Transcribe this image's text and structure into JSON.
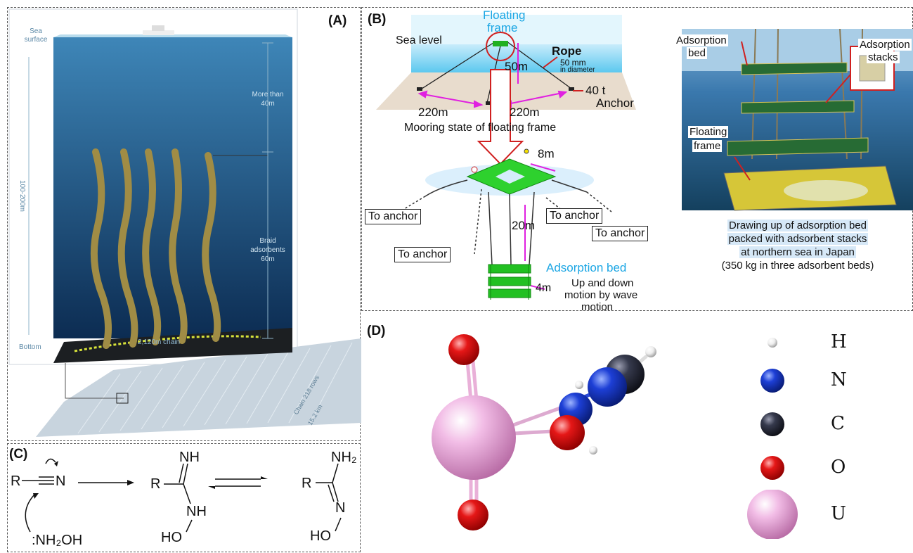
{
  "panels": {
    "a": "(A)",
    "b": "(B)",
    "c": "(C)",
    "d": "(D)"
  },
  "panel_a": {
    "sea_surface": "Sea surface",
    "more_than": "More than",
    "depth_top": "40m",
    "range": "100-200m",
    "braid": "Braid",
    "adsorbents": "adsorbents",
    "braid_len": "60m",
    "bottom": "Bottom",
    "chain": "2,120m chain",
    "chain_rows": "Chain 218 rows",
    "chain_km": "15.2 km"
  },
  "panel_b": {
    "floating": "Floating",
    "frame": "frame",
    "sea_level": "Sea level",
    "rope": "Rope",
    "rope_dia1": "50 mm",
    "rope_dia2": "in diameter",
    "depth_50": "50m",
    "anchor_t": "40 t",
    "anchor": "Anchor",
    "dist_left": "220m",
    "dist_right": "220m",
    "mooring": "Mooring state of floating frame",
    "frame_8m": "8m",
    "to_anchor_1": "To anchor",
    "to_anchor_2": "To anchor",
    "to_anchor_3": "To anchor",
    "to_anchor_4": "To anchor",
    "depth_20": "20m",
    "ads_bed": "Adsorption bed",
    "bed_4m": "4m",
    "wave1": "Up and down",
    "wave2": "motion by wave",
    "wave3": "motion",
    "photo_bed1": "Adsorption",
    "photo_bed2": "bed",
    "photo_stacks1": "Adsorption",
    "photo_stacks2": "stacks",
    "photo_frame1": "Floating",
    "photo_frame2": "frame",
    "cap1": "Drawing up of adsorption bed",
    "cap2": "packed with adsorbent stacks",
    "cap3": "at northern sea in Japan",
    "cap4": "(350 kg in three adsorbent beds)"
  },
  "panel_c": {
    "r1": "R",
    "n1": "N",
    "nh2oh": ":NH₂OH",
    "r2": "R",
    "nh_top": "NH",
    "nh_bot": "NH",
    "ho1": "HO",
    "r3": "R",
    "nh2": "NH₂",
    "n3": "N",
    "ho2": "HO"
  },
  "panel_d": {
    "legend": [
      {
        "symbol": "H",
        "color": "#f2f2f2",
        "size": 7
      },
      {
        "symbol": "N",
        "color": "#1d3fd6",
        "size": 17
      },
      {
        "symbol": "C",
        "color": "#2a2d3a",
        "size": 17
      },
      {
        "symbol": "O",
        "color": "#e01818",
        "size": 17
      },
      {
        "symbol": "U",
        "color": "#e9a7d9",
        "size": 36
      }
    ]
  }
}
